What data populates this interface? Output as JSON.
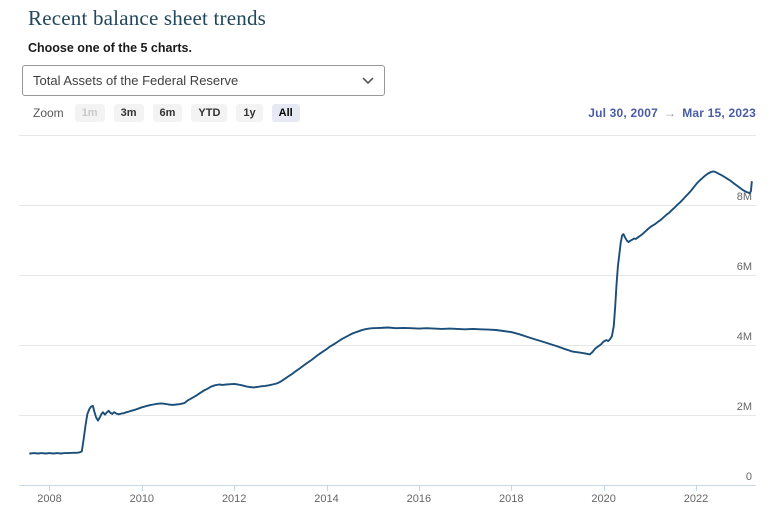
{
  "page": {
    "title": "Recent balance sheet trends",
    "subtitle": "Choose one of the 5 charts."
  },
  "chart_selector": {
    "selected": "Total Assets of the Federal Reserve",
    "chevron_icon": "chevron-down"
  },
  "toolbar": {
    "zoom_label": "Zoom",
    "buttons": [
      {
        "label": "1m",
        "state": "disabled"
      },
      {
        "label": "3m",
        "state": "normal"
      },
      {
        "label": "6m",
        "state": "normal"
      },
      {
        "label": "YTD",
        "state": "normal"
      },
      {
        "label": "1y",
        "state": "normal"
      },
      {
        "label": "All",
        "state": "selected"
      }
    ],
    "range": {
      "from": "Jul 30, 2007",
      "arrow": "→",
      "to": "Mar 15, 2023"
    }
  },
  "colors": {
    "series_line": "#1b4e78",
    "title_text": "#21475d",
    "range_text": "#4a5ca6",
    "grid_line": "#e7e7e7",
    "axis_line": "#c9d6e8",
    "tick_label": "#666666",
    "button_bg": "#f3f3f3",
    "button_selected_bg": "#e6e9f4"
  },
  "chart_data": {
    "type": "line",
    "title": "",
    "x_unit": "decimal year",
    "y_unit": "millions of US dollars (M = million on axis)",
    "x_domain": [
      2007.34,
      2023.3
    ],
    "y_domain": [
      0,
      10
    ],
    "grid": true,
    "legend": false,
    "range_shown": {
      "from": "Jul 30, 2007",
      "to": "Mar 15, 2023"
    },
    "x_ticks": [
      {
        "v": 2008,
        "label": "2008"
      },
      {
        "v": 2010,
        "label": "2010"
      },
      {
        "v": 2012,
        "label": "2012"
      },
      {
        "v": 2014,
        "label": "2014"
      },
      {
        "v": 2016,
        "label": "2016"
      },
      {
        "v": 2018,
        "label": "2018"
      },
      {
        "v": 2020,
        "label": "2020"
      },
      {
        "v": 2022,
        "label": "2022"
      }
    ],
    "y_ticks": [
      {
        "v": 0,
        "label": "0"
      },
      {
        "v": 2,
        "label": "2M"
      },
      {
        "v": 4,
        "label": "4M"
      },
      {
        "v": 6,
        "label": "6M"
      },
      {
        "v": 8,
        "label": "8M"
      },
      {
        "v": 10,
        "label": ""
      }
    ],
    "series": [
      {
        "name": "Total Assets of the Federal Reserve",
        "color": "#1b4e78",
        "points": [
          [
            2007.58,
            0.9
          ],
          [
            2007.67,
            0.91
          ],
          [
            2007.75,
            0.9
          ],
          [
            2007.83,
            0.91
          ],
          [
            2007.92,
            0.9
          ],
          [
            2008.0,
            0.91
          ],
          [
            2008.08,
            0.9
          ],
          [
            2008.17,
            0.91
          ],
          [
            2008.25,
            0.9
          ],
          [
            2008.33,
            0.91
          ],
          [
            2008.42,
            0.91
          ],
          [
            2008.5,
            0.92
          ],
          [
            2008.58,
            0.92
          ],
          [
            2008.65,
            0.93
          ],
          [
            2008.7,
            0.96
          ],
          [
            2008.74,
            1.3
          ],
          [
            2008.78,
            1.7
          ],
          [
            2008.82,
            2.02
          ],
          [
            2008.86,
            2.16
          ],
          [
            2008.9,
            2.24
          ],
          [
            2008.94,
            2.26
          ],
          [
            2008.97,
            2.1
          ],
          [
            2009.01,
            1.93
          ],
          [
            2009.05,
            1.84
          ],
          [
            2009.09,
            1.93
          ],
          [
            2009.13,
            2.04
          ],
          [
            2009.16,
            2.08
          ],
          [
            2009.2,
            2.01
          ],
          [
            2009.24,
            2.07
          ],
          [
            2009.28,
            2.12
          ],
          [
            2009.32,
            2.06
          ],
          [
            2009.36,
            2.03
          ],
          [
            2009.4,
            2.08
          ],
          [
            2009.45,
            2.04
          ],
          [
            2009.5,
            2.02
          ],
          [
            2009.55,
            2.04
          ],
          [
            2009.6,
            2.05
          ],
          [
            2009.67,
            2.08
          ],
          [
            2009.75,
            2.11
          ],
          [
            2009.83,
            2.14
          ],
          [
            2009.92,
            2.18
          ],
          [
            2010.0,
            2.22
          ],
          [
            2010.08,
            2.25
          ],
          [
            2010.17,
            2.28
          ],
          [
            2010.25,
            2.3
          ],
          [
            2010.33,
            2.32
          ],
          [
            2010.42,
            2.33
          ],
          [
            2010.5,
            2.32
          ],
          [
            2010.58,
            2.3
          ],
          [
            2010.67,
            2.29
          ],
          [
            2010.75,
            2.3
          ],
          [
            2010.83,
            2.31
          ],
          [
            2010.92,
            2.34
          ],
          [
            2011.0,
            2.42
          ],
          [
            2011.08,
            2.48
          ],
          [
            2011.17,
            2.55
          ],
          [
            2011.25,
            2.62
          ],
          [
            2011.33,
            2.69
          ],
          [
            2011.42,
            2.75
          ],
          [
            2011.5,
            2.81
          ],
          [
            2011.58,
            2.85
          ],
          [
            2011.67,
            2.87
          ],
          [
            2011.75,
            2.86
          ],
          [
            2011.83,
            2.87
          ],
          [
            2011.92,
            2.88
          ],
          [
            2012.0,
            2.89
          ],
          [
            2012.08,
            2.87
          ],
          [
            2012.17,
            2.85
          ],
          [
            2012.25,
            2.82
          ],
          [
            2012.33,
            2.8
          ],
          [
            2012.42,
            2.79
          ],
          [
            2012.5,
            2.8
          ],
          [
            2012.58,
            2.82
          ],
          [
            2012.67,
            2.83
          ],
          [
            2012.75,
            2.85
          ],
          [
            2012.83,
            2.87
          ],
          [
            2012.92,
            2.9
          ],
          [
            2013.0,
            2.95
          ],
          [
            2013.08,
            3.02
          ],
          [
            2013.17,
            3.1
          ],
          [
            2013.25,
            3.17
          ],
          [
            2013.33,
            3.25
          ],
          [
            2013.42,
            3.33
          ],
          [
            2013.5,
            3.41
          ],
          [
            2013.58,
            3.49
          ],
          [
            2013.67,
            3.57
          ],
          [
            2013.75,
            3.65
          ],
          [
            2013.83,
            3.73
          ],
          [
            2013.92,
            3.81
          ],
          [
            2014.0,
            3.88
          ],
          [
            2014.08,
            3.96
          ],
          [
            2014.17,
            4.03
          ],
          [
            2014.25,
            4.1
          ],
          [
            2014.33,
            4.17
          ],
          [
            2014.42,
            4.23
          ],
          [
            2014.5,
            4.29
          ],
          [
            2014.58,
            4.34
          ],
          [
            2014.67,
            4.38
          ],
          [
            2014.75,
            4.42
          ],
          [
            2014.83,
            4.45
          ],
          [
            2014.92,
            4.47
          ],
          [
            2015.0,
            4.48
          ],
          [
            2015.17,
            4.49
          ],
          [
            2015.33,
            4.5
          ],
          [
            2015.5,
            4.48
          ],
          [
            2015.67,
            4.49
          ],
          [
            2015.83,
            4.48
          ],
          [
            2016.0,
            4.47
          ],
          [
            2016.17,
            4.48
          ],
          [
            2016.33,
            4.47
          ],
          [
            2016.5,
            4.46
          ],
          [
            2016.67,
            4.47
          ],
          [
            2016.83,
            4.46
          ],
          [
            2017.0,
            4.45
          ],
          [
            2017.17,
            4.46
          ],
          [
            2017.33,
            4.45
          ],
          [
            2017.5,
            4.44
          ],
          [
            2017.67,
            4.43
          ],
          [
            2017.83,
            4.4
          ],
          [
            2018.0,
            4.37
          ],
          [
            2018.17,
            4.31
          ],
          [
            2018.33,
            4.24
          ],
          [
            2018.5,
            4.17
          ],
          [
            2018.67,
            4.1
          ],
          [
            2018.83,
            4.03
          ],
          [
            2019.0,
            3.96
          ],
          [
            2019.17,
            3.88
          ],
          [
            2019.33,
            3.81
          ],
          [
            2019.5,
            3.78
          ],
          [
            2019.6,
            3.76
          ],
          [
            2019.7,
            3.73
          ],
          [
            2019.76,
            3.8
          ],
          [
            2019.82,
            3.9
          ],
          [
            2019.88,
            3.96
          ],
          [
            2019.94,
            4.01
          ],
          [
            2020.0,
            4.1
          ],
          [
            2020.06,
            4.14
          ],
          [
            2020.1,
            4.11
          ],
          [
            2020.14,
            4.17
          ],
          [
            2020.18,
            4.25
          ],
          [
            2020.22,
            4.55
          ],
          [
            2020.25,
            5.1
          ],
          [
            2020.28,
            5.72
          ],
          [
            2020.31,
            6.25
          ],
          [
            2020.34,
            6.58
          ],
          [
            2020.37,
            6.92
          ],
          [
            2020.4,
            7.13
          ],
          [
            2020.43,
            7.17
          ],
          [
            2020.46,
            7.08
          ],
          [
            2020.5,
            6.99
          ],
          [
            2020.54,
            6.94
          ],
          [
            2020.58,
            6.98
          ],
          [
            2020.62,
            7.01
          ],
          [
            2020.66,
            7.04
          ],
          [
            2020.7,
            7.03
          ],
          [
            2020.75,
            7.08
          ],
          [
            2020.8,
            7.13
          ],
          [
            2020.85,
            7.18
          ],
          [
            2020.9,
            7.24
          ],
          [
            2020.95,
            7.3
          ],
          [
            2021.0,
            7.36
          ],
          [
            2021.06,
            7.41
          ],
          [
            2021.12,
            7.46
          ],
          [
            2021.18,
            7.52
          ],
          [
            2021.24,
            7.58
          ],
          [
            2021.3,
            7.65
          ],
          [
            2021.36,
            7.72
          ],
          [
            2021.42,
            7.78
          ],
          [
            2021.48,
            7.86
          ],
          [
            2021.54,
            7.93
          ],
          [
            2021.6,
            8.01
          ],
          [
            2021.66,
            8.08
          ],
          [
            2021.72,
            8.16
          ],
          [
            2021.78,
            8.25
          ],
          [
            2021.84,
            8.33
          ],
          [
            2021.9,
            8.42
          ],
          [
            2021.96,
            8.52
          ],
          [
            2022.02,
            8.62
          ],
          [
            2022.08,
            8.7
          ],
          [
            2022.14,
            8.77
          ],
          [
            2022.2,
            8.84
          ],
          [
            2022.26,
            8.9
          ],
          [
            2022.32,
            8.94
          ],
          [
            2022.38,
            8.96
          ],
          [
            2022.44,
            8.93
          ],
          [
            2022.5,
            8.89
          ],
          [
            2022.56,
            8.85
          ],
          [
            2022.62,
            8.8
          ],
          [
            2022.68,
            8.75
          ],
          [
            2022.74,
            8.7
          ],
          [
            2022.8,
            8.64
          ],
          [
            2022.86,
            8.58
          ],
          [
            2022.92,
            8.52
          ],
          [
            2022.98,
            8.46
          ],
          [
            2023.04,
            8.41
          ],
          [
            2023.1,
            8.37
          ],
          [
            2023.16,
            8.34
          ],
          [
            2023.19,
            8.39
          ],
          [
            2023.21,
            8.66
          ]
        ]
      }
    ]
  }
}
